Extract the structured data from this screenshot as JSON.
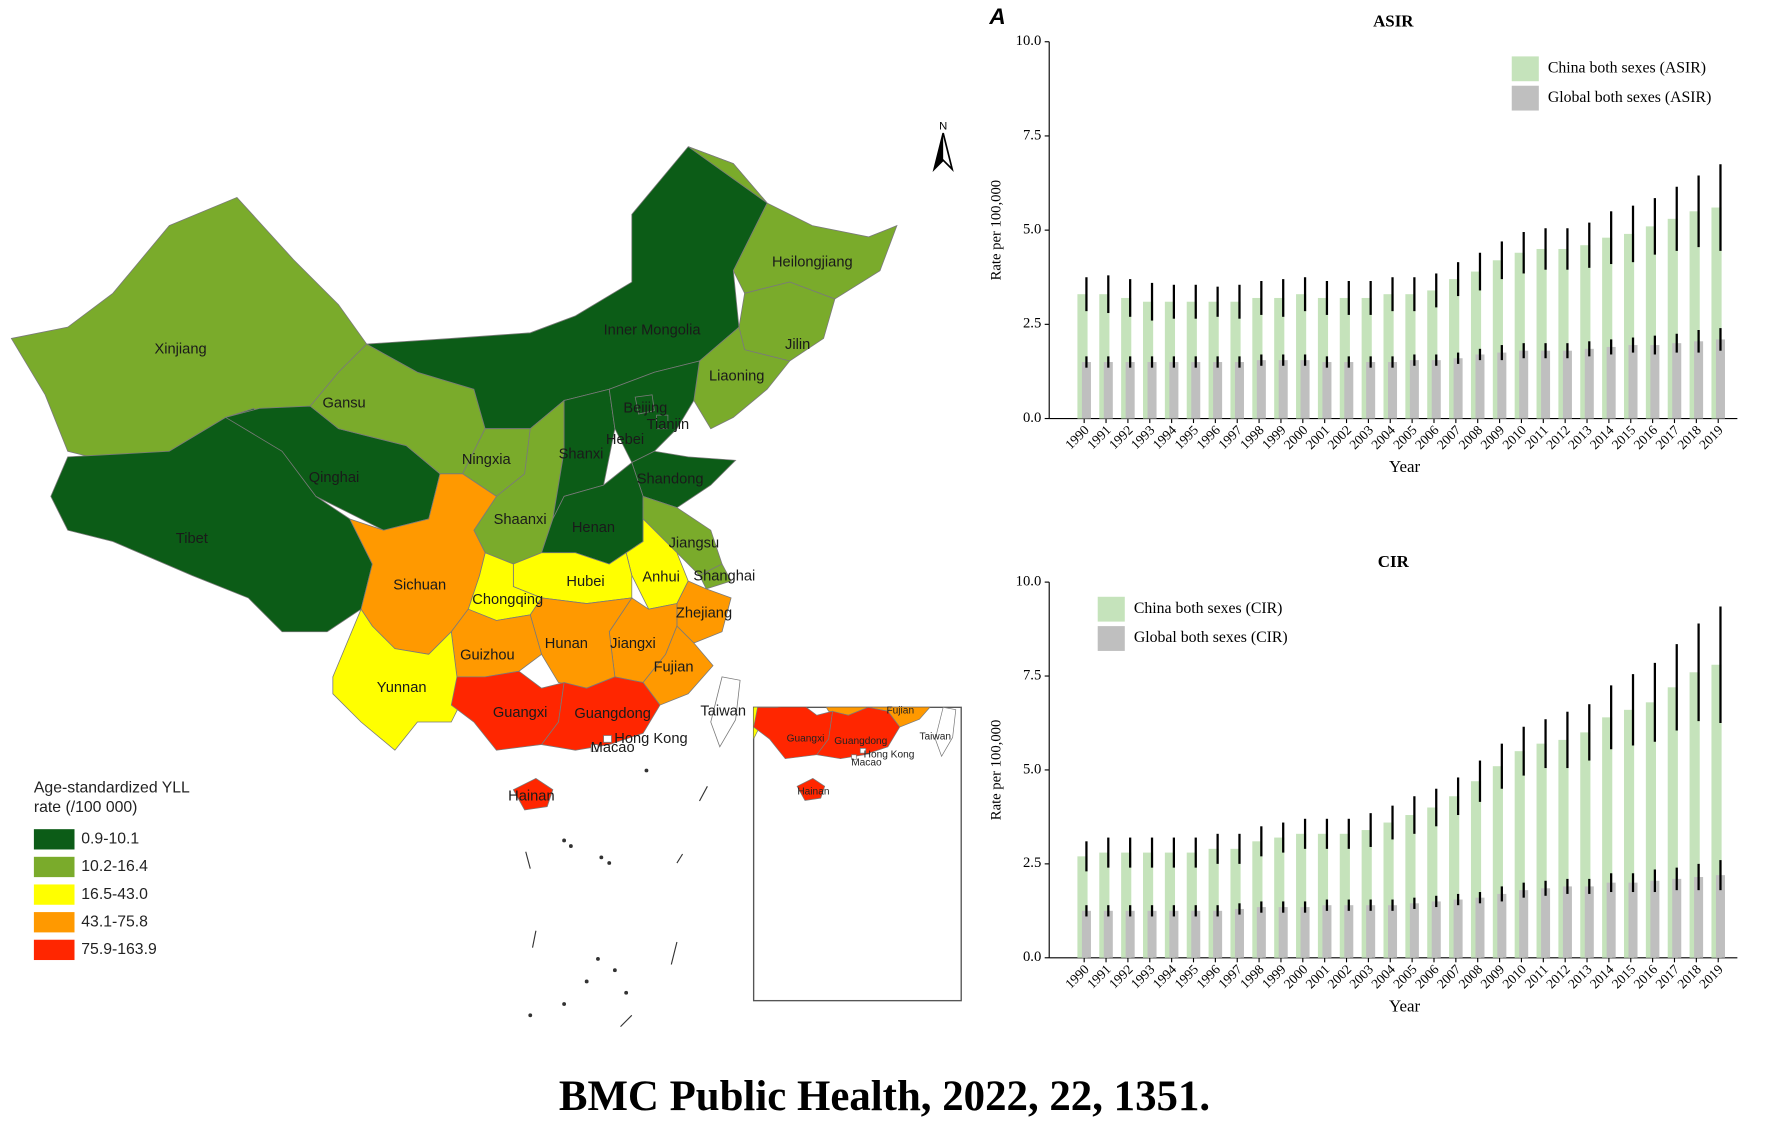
{
  "caption": "BMC Public Health, 2022, 22, 1351.",
  "chart_data": [
    {
      "type": "map",
      "north": "N",
      "legend_title": [
        "Age-standardized YLL",
        "rate (/100 000)"
      ],
      "legend": [
        {
          "label": "0.9-10.1",
          "color": "#0c5c17"
        },
        {
          "label": "10.2-16.4",
          "color": "#7aab2b"
        },
        {
          "label": "16.5-43.0",
          "color": "#ffff00"
        },
        {
          "label": "43.1-75.8",
          "color": "#ff9900"
        },
        {
          "label": "75.9-163.9",
          "color": "#ff2600"
        }
      ],
      "regions": [
        {
          "name": "Xinjiang",
          "color": "#7aab2b"
        },
        {
          "name": "Tibet",
          "color": "#0c5c17"
        },
        {
          "name": "Qinghai",
          "color": "#0c5c17"
        },
        {
          "name": "Gansu",
          "color": "#7aab2b"
        },
        {
          "name": "Inner Mongolia",
          "color": "#0c5c17"
        },
        {
          "name": "Heilongjiang",
          "color": "#7aab2b"
        },
        {
          "name": "Jilin",
          "color": "#7aab2b"
        },
        {
          "name": "Liaoning",
          "color": "#7aab2b"
        },
        {
          "name": "Ningxia",
          "color": "#7aab2b"
        },
        {
          "name": "Shaanxi",
          "color": "#7aab2b"
        },
        {
          "name": "Shanxi",
          "color": "#0c5c17"
        },
        {
          "name": "Hebei",
          "color": "#0c5c17"
        },
        {
          "name": "Beijing",
          "color": "#0c5c17"
        },
        {
          "name": "Tianjin",
          "color": "#0c5c17"
        },
        {
          "name": "Shandong",
          "color": "#0c5c17"
        },
        {
          "name": "Henan",
          "color": "#0c5c17"
        },
        {
          "name": "Jiangsu",
          "color": "#7aab2b"
        },
        {
          "name": "Shanghai",
          "color": "#7aab2b"
        },
        {
          "name": "Anhui",
          "color": "#ffff00"
        },
        {
          "name": "Hubei",
          "color": "#ffff00"
        },
        {
          "name": "Chongqing",
          "color": "#ffff00"
        },
        {
          "name": "Sichuan",
          "color": "#ff9900"
        },
        {
          "name": "Zhejiang",
          "color": "#ff9900"
        },
        {
          "name": "Jiangxi",
          "color": "#ff9900"
        },
        {
          "name": "Hunan",
          "color": "#ff9900"
        },
        {
          "name": "Guizhou",
          "color": "#ff9900"
        },
        {
          "name": "Fujian",
          "color": "#ff9900"
        },
        {
          "name": "Yunnan",
          "color": "#ffff00"
        },
        {
          "name": "Guangxi",
          "color": "#ff2600"
        },
        {
          "name": "Guangdong",
          "color": "#ff2600"
        },
        {
          "name": "Hong Kong",
          "color": "#ffffff"
        },
        {
          "name": "Macao",
          "color": "#ffffff"
        },
        {
          "name": "Taiwan",
          "color": "#ffffff"
        },
        {
          "name": "Hainan",
          "color": "#ff2600"
        }
      ],
      "inset_labels": [
        "Guangxi",
        "Guangdong",
        "Fujian",
        "Hong Kong",
        "Macao",
        "Taiwan",
        "Hainan"
      ]
    },
    {
      "type": "bar",
      "panel": "A",
      "title": "ASIR",
      "xlabel": "Year",
      "ylabel": "Rate per 100,000",
      "categories": [
        "1990",
        "1991",
        "1992",
        "1993",
        "1994",
        "1995",
        "1996",
        "1997",
        "1998",
        "1999",
        "2000",
        "2001",
        "2002",
        "2003",
        "2004",
        "2005",
        "2006",
        "2007",
        "2008",
        "2009",
        "2010",
        "2011",
        "2012",
        "2013",
        "2014",
        "2015",
        "2016",
        "2017",
        "2018",
        "2019"
      ],
      "ylim": [
        0,
        10
      ],
      "yticks": [
        {
          "value": 0,
          "label": "0.0"
        },
        {
          "value": 2.5,
          "label": "2.5"
        },
        {
          "value": 5,
          "label": "5.0"
        },
        {
          "value": 7.5,
          "label": "7.5"
        },
        {
          "value": 10,
          "label": "10.0"
        }
      ],
      "legend_position": "top right",
      "series": [
        {
          "name": "China both sexes (ASIR)",
          "color": "#c5e3bb",
          "values": [
            3.3,
            3.3,
            3.2,
            3.1,
            3.1,
            3.1,
            3.1,
            3.1,
            3.2,
            3.2,
            3.3,
            3.2,
            3.2,
            3.2,
            3.3,
            3.3,
            3.4,
            3.7,
            3.9,
            4.2,
            4.4,
            4.5,
            4.5,
            4.6,
            4.8,
            4.9,
            5.1,
            5.3,
            5.5,
            5.6
          ],
          "errors": [
            0.45,
            0.5,
            0.5,
            0.5,
            0.45,
            0.45,
            0.4,
            0.45,
            0.45,
            0.5,
            0.45,
            0.45,
            0.45,
            0.45,
            0.45,
            0.45,
            0.45,
            0.45,
            0.5,
            0.5,
            0.55,
            0.55,
            0.55,
            0.6,
            0.7,
            0.75,
            0.75,
            0.85,
            0.95,
            1.15
          ]
        },
        {
          "name": "Global both sexes (ASIR)",
          "color": "#bfbfbf",
          "values": [
            1.5,
            1.5,
            1.5,
            1.5,
            1.5,
            1.5,
            1.5,
            1.5,
            1.55,
            1.55,
            1.55,
            1.5,
            1.5,
            1.5,
            1.5,
            1.55,
            1.55,
            1.6,
            1.7,
            1.75,
            1.8,
            1.8,
            1.8,
            1.85,
            1.9,
            1.95,
            1.95,
            2.0,
            2.05,
            2.1
          ],
          "errors": [
            0.15,
            0.15,
            0.15,
            0.15,
            0.15,
            0.15,
            0.15,
            0.15,
            0.15,
            0.15,
            0.15,
            0.15,
            0.15,
            0.15,
            0.15,
            0.15,
            0.15,
            0.15,
            0.15,
            0.2,
            0.2,
            0.2,
            0.2,
            0.2,
            0.2,
            0.2,
            0.25,
            0.25,
            0.3,
            0.3
          ]
        }
      ]
    },
    {
      "type": "bar",
      "title": "CIR",
      "xlabel": "Year",
      "ylabel": "Rate per 100,000",
      "categories": [
        "1990",
        "1991",
        "1992",
        "1993",
        "1994",
        "1995",
        "1996",
        "1997",
        "1998",
        "1999",
        "2000",
        "2001",
        "2002",
        "2003",
        "2004",
        "2005",
        "2006",
        "2007",
        "2008",
        "2009",
        "2010",
        "2011",
        "2012",
        "2013",
        "2014",
        "2015",
        "2016",
        "2017",
        "2018",
        "2019"
      ],
      "ylim": [
        0,
        10
      ],
      "yticks": [
        {
          "value": 0,
          "label": "0.0"
        },
        {
          "value": 2.5,
          "label": "2.5"
        },
        {
          "value": 5,
          "label": "5.0"
        },
        {
          "value": 7.5,
          "label": "7.5"
        },
        {
          "value": 10,
          "label": "10.0"
        }
      ],
      "legend_position": "top left",
      "series": [
        {
          "name": "China both sexes (CIR)",
          "color": "#c5e3bb",
          "values": [
            2.7,
            2.8,
            2.8,
            2.8,
            2.8,
            2.8,
            2.9,
            2.9,
            3.1,
            3.2,
            3.3,
            3.3,
            3.3,
            3.4,
            3.6,
            3.8,
            4.0,
            4.3,
            4.7,
            5.1,
            5.5,
            5.7,
            5.8,
            6.0,
            6.4,
            6.6,
            6.8,
            7.2,
            7.6,
            7.8
          ],
          "errors": [
            0.4,
            0.4,
            0.4,
            0.4,
            0.4,
            0.4,
            0.4,
            0.4,
            0.4,
            0.4,
            0.4,
            0.4,
            0.4,
            0.45,
            0.45,
            0.5,
            0.5,
            0.5,
            0.55,
            0.6,
            0.65,
            0.65,
            0.75,
            0.75,
            0.85,
            0.95,
            1.05,
            1.15,
            1.3,
            1.55
          ]
        },
        {
          "name": "Global both sexes (CIR)",
          "color": "#bfbfbf",
          "values": [
            1.25,
            1.25,
            1.25,
            1.25,
            1.25,
            1.25,
            1.25,
            1.3,
            1.35,
            1.35,
            1.35,
            1.4,
            1.4,
            1.4,
            1.4,
            1.45,
            1.5,
            1.55,
            1.6,
            1.7,
            1.8,
            1.85,
            1.9,
            1.9,
            2.0,
            2.0,
            2.05,
            2.1,
            2.15,
            2.2
          ],
          "errors": [
            0.15,
            0.15,
            0.15,
            0.15,
            0.15,
            0.15,
            0.15,
            0.15,
            0.15,
            0.15,
            0.15,
            0.15,
            0.15,
            0.15,
            0.15,
            0.15,
            0.15,
            0.15,
            0.15,
            0.2,
            0.2,
            0.2,
            0.2,
            0.2,
            0.25,
            0.25,
            0.3,
            0.3,
            0.35,
            0.4
          ]
        }
      ]
    }
  ]
}
